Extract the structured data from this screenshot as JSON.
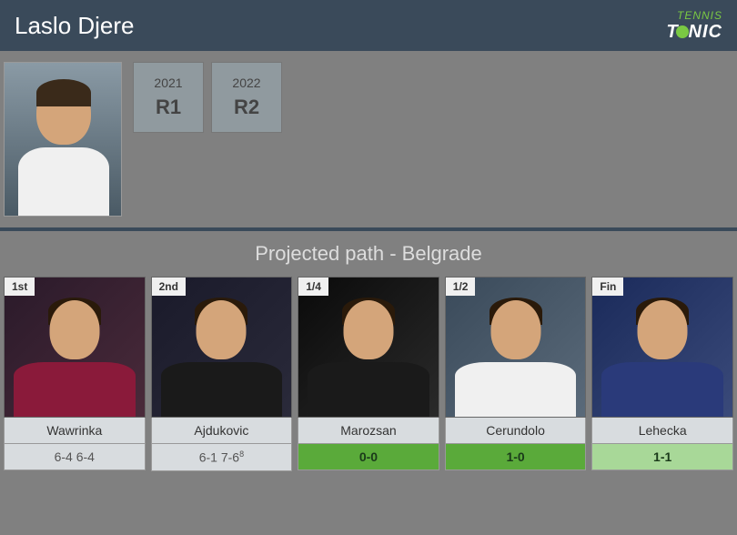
{
  "header": {
    "player_name": "Laslo Djere",
    "logo_top": "TENNIS",
    "logo_bottom": "TONIC"
  },
  "history": [
    {
      "year": "2021",
      "result": "R1"
    },
    {
      "year": "2022",
      "result": "R2"
    }
  ],
  "projected": {
    "title": "Projected path - Belgrade",
    "matches": [
      {
        "round": "1st",
        "name": "Wawrinka",
        "h2h": "6-4 6-4",
        "h2h_class": "h2h-gray",
        "photo_class": "photo-bg-1",
        "body_class": "opponent-body-1"
      },
      {
        "round": "2nd",
        "name": "Ajdukovic",
        "h2h": "6-1 7-6",
        "h2h_sup": "8",
        "h2h_class": "h2h-gray",
        "photo_class": "photo-bg-2",
        "body_class": "opponent-body-2"
      },
      {
        "round": "1/4",
        "name": "Marozsan",
        "h2h": "0-0",
        "h2h_class": "h2h-green",
        "photo_class": "photo-bg-3",
        "body_class": "opponent-body-3"
      },
      {
        "round": "1/2",
        "name": "Cerundolo",
        "h2h": "1-0",
        "h2h_class": "h2h-green",
        "photo_class": "photo-bg-4",
        "body_class": "opponent-body-4"
      },
      {
        "round": "Fin",
        "name": "Lehecka",
        "h2h": "1-1",
        "h2h_class": "h2h-light",
        "photo_class": "photo-bg-5",
        "body_class": "opponent-body-5"
      }
    ]
  },
  "styling": {
    "header_bg": "#3a4a5a",
    "body_bg": "#808080",
    "accent_green": "#7ac943",
    "year_box_bg": "#909a9f",
    "name_bar_bg": "#d8dcdf",
    "h2h_green_bg": "#5aaa3a",
    "h2h_light_bg": "#a8d898"
  }
}
